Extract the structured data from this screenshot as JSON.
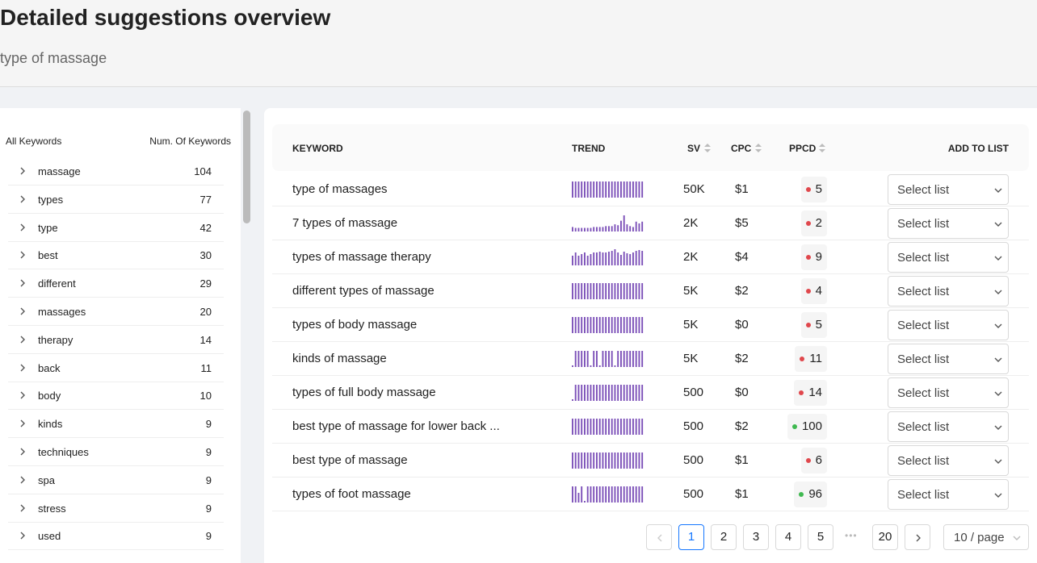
{
  "header": {
    "title": "Detailed suggestions overview",
    "subtitle": "type of massage"
  },
  "sidebar": {
    "columns": [
      "All Keywords",
      "Num. Of Keywords"
    ],
    "rows": [
      {
        "keyword": "massage",
        "count": 104
      },
      {
        "keyword": "types",
        "count": 77
      },
      {
        "keyword": "type",
        "count": 42
      },
      {
        "keyword": "best",
        "count": 30
      },
      {
        "keyword": "different",
        "count": 29
      },
      {
        "keyword": "massages",
        "count": 20
      },
      {
        "keyword": "therapy",
        "count": 14
      },
      {
        "keyword": "back",
        "count": 11
      },
      {
        "keyword": "body",
        "count": 10
      },
      {
        "keyword": "kinds",
        "count": 9
      },
      {
        "keyword": "techniques",
        "count": 9
      },
      {
        "keyword": "spa",
        "count": 9
      },
      {
        "keyword": "stress",
        "count": 9
      },
      {
        "keyword": "used",
        "count": 9
      }
    ]
  },
  "table": {
    "columns": [
      "KEYWORD",
      "TREND",
      "SV",
      "CPC",
      "PPCD",
      "ADD TO LIST"
    ],
    "rows": [
      {
        "keyword": "type of massages",
        "trend": [
          100,
          100,
          100,
          100,
          100,
          100,
          100,
          100,
          100,
          100,
          100,
          100,
          100,
          100,
          100,
          100,
          100,
          100,
          100,
          100,
          100,
          100,
          100,
          100
        ],
        "sv": "50K",
        "cpc": "$1",
        "ppcd": 5,
        "ppcd_color": "#e0474c",
        "list": "Select list"
      },
      {
        "keyword": "7 types of massage",
        "trend": [
          25,
          20,
          20,
          20,
          20,
          20,
          20,
          25,
          25,
          25,
          25,
          30,
          30,
          30,
          40,
          35,
          60,
          90,
          40,
          30,
          25,
          55,
          45,
          55
        ],
        "sv": "2K",
        "cpc": "$5",
        "ppcd": 2,
        "ppcd_color": "#e0474c",
        "list": "Select list"
      },
      {
        "keyword": "types of massage therapy",
        "trend": [
          60,
          80,
          60,
          70,
          80,
          60,
          70,
          80,
          80,
          85,
          80,
          80,
          85,
          90,
          100,
          80,
          65,
          85,
          75,
          70,
          80,
          90,
          95,
          90
        ],
        "sv": "2K",
        "cpc": "$4",
        "ppcd": 9,
        "ppcd_color": "#e0474c",
        "list": "Select list"
      },
      {
        "keyword": "different types of massage",
        "trend": [
          100,
          100,
          100,
          100,
          100,
          100,
          100,
          100,
          100,
          100,
          100,
          100,
          100,
          100,
          100,
          100,
          100,
          100,
          100,
          100,
          100,
          100,
          100,
          100
        ],
        "sv": "5K",
        "cpc": "$2",
        "ppcd": 4,
        "ppcd_color": "#e0474c",
        "list": "Select list"
      },
      {
        "keyword": "types of body massage",
        "trend": [
          100,
          100,
          100,
          100,
          100,
          100,
          100,
          100,
          100,
          100,
          100,
          100,
          100,
          100,
          100,
          100,
          100,
          100,
          100,
          100,
          100,
          100,
          100,
          100
        ],
        "sv": "5K",
        "cpc": "$0",
        "ppcd": 5,
        "ppcd_color": "#e0474c",
        "list": "Select list"
      },
      {
        "keyword": "kinds of massage",
        "trend": [
          10,
          100,
          100,
          100,
          100,
          100,
          10,
          100,
          100,
          10,
          100,
          100,
          100,
          100,
          10,
          100,
          100,
          100,
          100,
          100,
          100,
          100,
          100,
          100
        ],
        "sv": "5K",
        "cpc": "$2",
        "ppcd": 11,
        "ppcd_color": "#e0474c",
        "list": "Select list"
      },
      {
        "keyword": "types of full body massage",
        "trend": [
          10,
          100,
          100,
          100,
          100,
          100,
          100,
          100,
          100,
          100,
          100,
          100,
          100,
          100,
          100,
          100,
          100,
          100,
          100,
          100,
          100,
          100,
          100,
          100
        ],
        "sv": "500",
        "cpc": "$0",
        "ppcd": 14,
        "ppcd_color": "#e0474c",
        "list": "Select list"
      },
      {
        "keyword": "best type of massage for lower back ...",
        "trend": [
          100,
          100,
          100,
          100,
          100,
          100,
          100,
          100,
          100,
          100,
          100,
          100,
          100,
          100,
          100,
          100,
          100,
          100,
          100,
          100,
          100,
          100,
          100,
          100
        ],
        "sv": "500",
        "cpc": "$2",
        "ppcd": 100,
        "ppcd_color": "#3fb950",
        "list": "Select list"
      },
      {
        "keyword": "best type of massage",
        "trend": [
          100,
          100,
          100,
          100,
          100,
          100,
          100,
          100,
          100,
          100,
          100,
          100,
          100,
          100,
          100,
          100,
          100,
          100,
          100,
          100,
          100,
          100,
          100,
          100
        ],
        "sv": "500",
        "cpc": "$1",
        "ppcd": 6,
        "ppcd_color": "#e0474c",
        "list": "Select list"
      },
      {
        "keyword": "types of foot massage",
        "trend": [
          100,
          100,
          60,
          100,
          10,
          100,
          100,
          100,
          100,
          100,
          100,
          100,
          100,
          100,
          100,
          100,
          100,
          100,
          100,
          100,
          100,
          100,
          100,
          100
        ],
        "sv": "500",
        "cpc": "$1",
        "ppcd": 96,
        "ppcd_color": "#3fb950",
        "list": "Select list"
      }
    ]
  },
  "pagination": {
    "pages": [
      1,
      2,
      3,
      4,
      5,
      20
    ],
    "current": 1,
    "page_size": "10 / page"
  }
}
